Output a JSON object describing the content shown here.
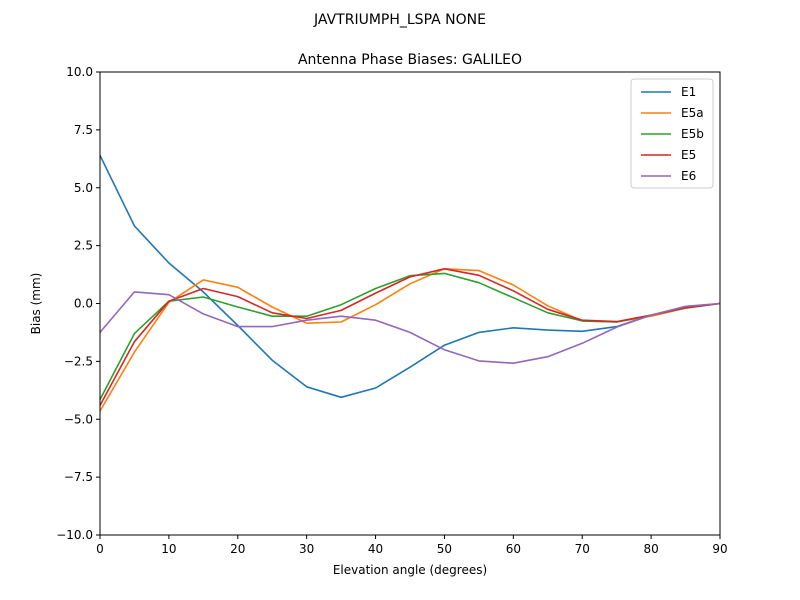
{
  "chart_data": {
    "type": "line",
    "suptitle": "JAVTRIUMPH_LSPA NONE",
    "title": "Antenna Phase Biases: GALILEO",
    "xlabel": "Elevation angle (degrees)",
    "ylabel": "Bias (mm)",
    "xlim": [
      0,
      90
    ],
    "ylim": [
      -10,
      10
    ],
    "x_ticks": [
      0,
      10,
      20,
      30,
      40,
      50,
      60,
      70,
      80,
      90
    ],
    "y_ticks": [
      -10.0,
      -7.5,
      -5.0,
      -2.5,
      0.0,
      2.5,
      5.0,
      7.5,
      10.0
    ],
    "x_tick_labels": [
      "0",
      "10",
      "20",
      "30",
      "40",
      "50",
      "60",
      "70",
      "80",
      "90"
    ],
    "y_tick_labels": [
      "−10.0",
      "−7.5",
      "−5.0",
      "−2.5",
      "0.0",
      "2.5",
      "5.0",
      "7.5",
      "10.0"
    ],
    "grid": false,
    "legend_position": "top-right",
    "x": [
      0,
      5,
      10,
      15,
      20,
      25,
      30,
      35,
      40,
      45,
      50,
      55,
      60,
      65,
      70,
      75,
      80,
      85,
      90
    ],
    "series": [
      {
        "name": "E1",
        "color": "#1f77b4",
        "values": [
          6.4,
          3.35,
          1.75,
          0.5,
          -0.95,
          -2.45,
          -3.6,
          -4.05,
          -3.65,
          -2.75,
          -1.8,
          -1.25,
          -1.05,
          -1.15,
          -1.2,
          -1.0,
          -0.5,
          -0.15,
          0.0
        ]
      },
      {
        "name": "E5a",
        "color": "#ff7f0e",
        "values": [
          -4.65,
          -2.1,
          0.05,
          1.02,
          0.7,
          -0.15,
          -0.85,
          -0.8,
          -0.05,
          0.85,
          1.5,
          1.42,
          0.8,
          -0.1,
          -0.75,
          -0.8,
          -0.55,
          -0.2,
          0.0
        ]
      },
      {
        "name": "E5b",
        "color": "#2ca02c",
        "values": [
          -4.15,
          -1.3,
          0.1,
          0.28,
          -0.15,
          -0.55,
          -0.55,
          -0.05,
          0.65,
          1.2,
          1.3,
          0.9,
          0.25,
          -0.4,
          -0.75,
          -0.8,
          -0.5,
          -0.2,
          0.0
        ]
      },
      {
        "name": "E5",
        "color": "#d62728",
        "values": [
          -4.4,
          -1.65,
          0.1,
          0.65,
          0.3,
          -0.4,
          -0.65,
          -0.3,
          0.45,
          1.15,
          1.5,
          1.22,
          0.55,
          -0.25,
          -0.72,
          -0.78,
          -0.5,
          -0.18,
          0.0
        ]
      },
      {
        "name": "E6",
        "color": "#9467bd",
        "values": [
          -1.25,
          0.5,
          0.38,
          -0.45,
          -1.0,
          -1.0,
          -0.72,
          -0.55,
          -0.72,
          -1.25,
          -2.0,
          -2.48,
          -2.58,
          -2.3,
          -1.72,
          -1.02,
          -0.5,
          -0.12,
          0.0
        ]
      }
    ]
  }
}
